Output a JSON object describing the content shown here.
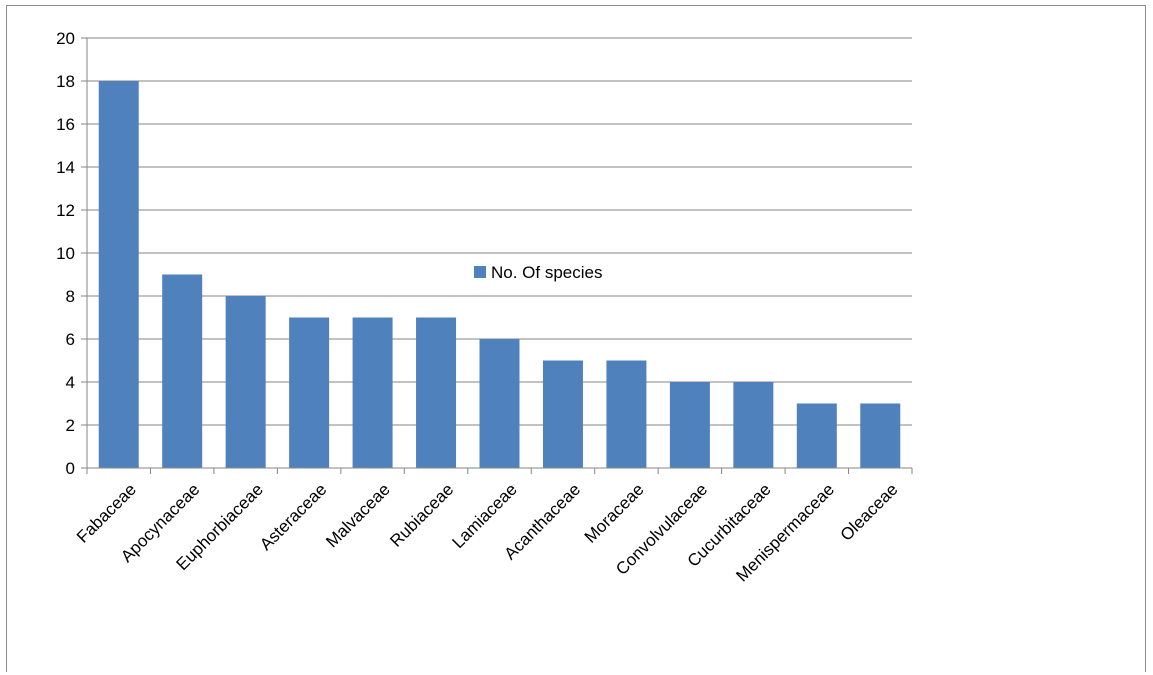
{
  "chart_data": {
    "type": "bar",
    "title": "",
    "xlabel": "",
    "ylabel": "",
    "ylim": [
      0,
      20
    ],
    "yticks": [
      0,
      2,
      4,
      6,
      8,
      10,
      12,
      14,
      16,
      18,
      20
    ],
    "grid": true,
    "legend_position": "center-right",
    "categories": [
      "Fabaceae",
      "Apocynaceae",
      "Euphorbiaceae",
      "Asteraceae",
      "Malvaceae",
      "Rubiaceae",
      "Lamiaceae",
      "Acanthaceae",
      "Moraceae",
      "Convolvulaceae",
      "Cucurbitaceae",
      "Menispermaceae",
      "Oleaceae"
    ],
    "series": [
      {
        "name": "No. Of species",
        "color": "#4f81bd",
        "values": [
          18,
          9,
          8,
          7,
          7,
          7,
          6,
          5,
          5,
          4,
          4,
          3,
          3
        ]
      }
    ]
  }
}
